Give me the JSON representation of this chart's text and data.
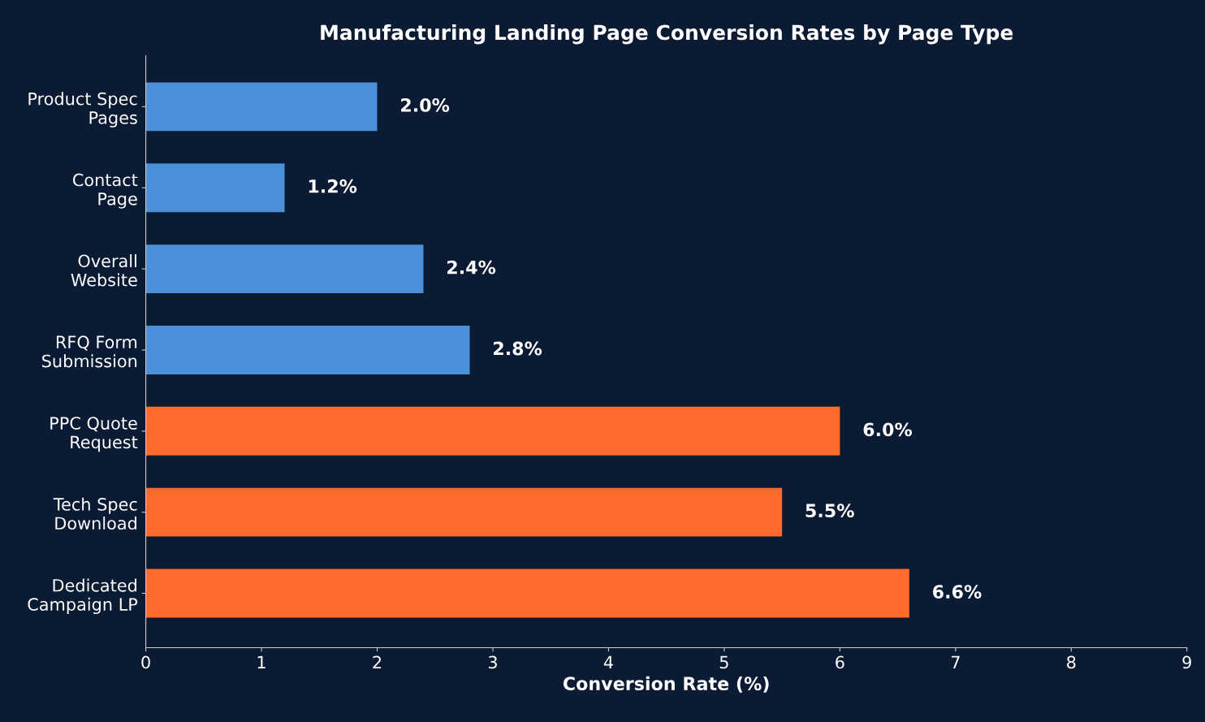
{
  "chart_data": {
    "type": "bar",
    "orientation": "horizontal",
    "title": "Manufacturing Landing Page Conversion Rates by Page Type",
    "xlabel": "Conversion Rate (%)",
    "categories": [
      "Product Spec\nPages",
      "Contact\nPage",
      "Overall\nWebsite",
      "RFQ Form\nSubmission",
      "PPC Quote\nRequest",
      "Tech Spec\nDownload",
      "Dedicated\nCampaign LP"
    ],
    "values": [
      2.0,
      1.2,
      2.4,
      2.8,
      6.0,
      5.5,
      6.6
    ],
    "colors": [
      "#4a90d9",
      "#4a90d9",
      "#4a90d9",
      "#4a90d9",
      "#ff6b2d",
      "#ff6b2d",
      "#ff6b2d"
    ],
    "value_labels": [
      "2.0%",
      "1.2%",
      "2.4%",
      "2.8%",
      "6.0%",
      "5.5%",
      "6.6%"
    ],
    "xlim": [
      0,
      9
    ],
    "xticks": [
      0,
      1,
      2,
      3,
      4,
      5,
      6,
      7,
      8,
      9
    ],
    "grid": false,
    "legend": false
  }
}
